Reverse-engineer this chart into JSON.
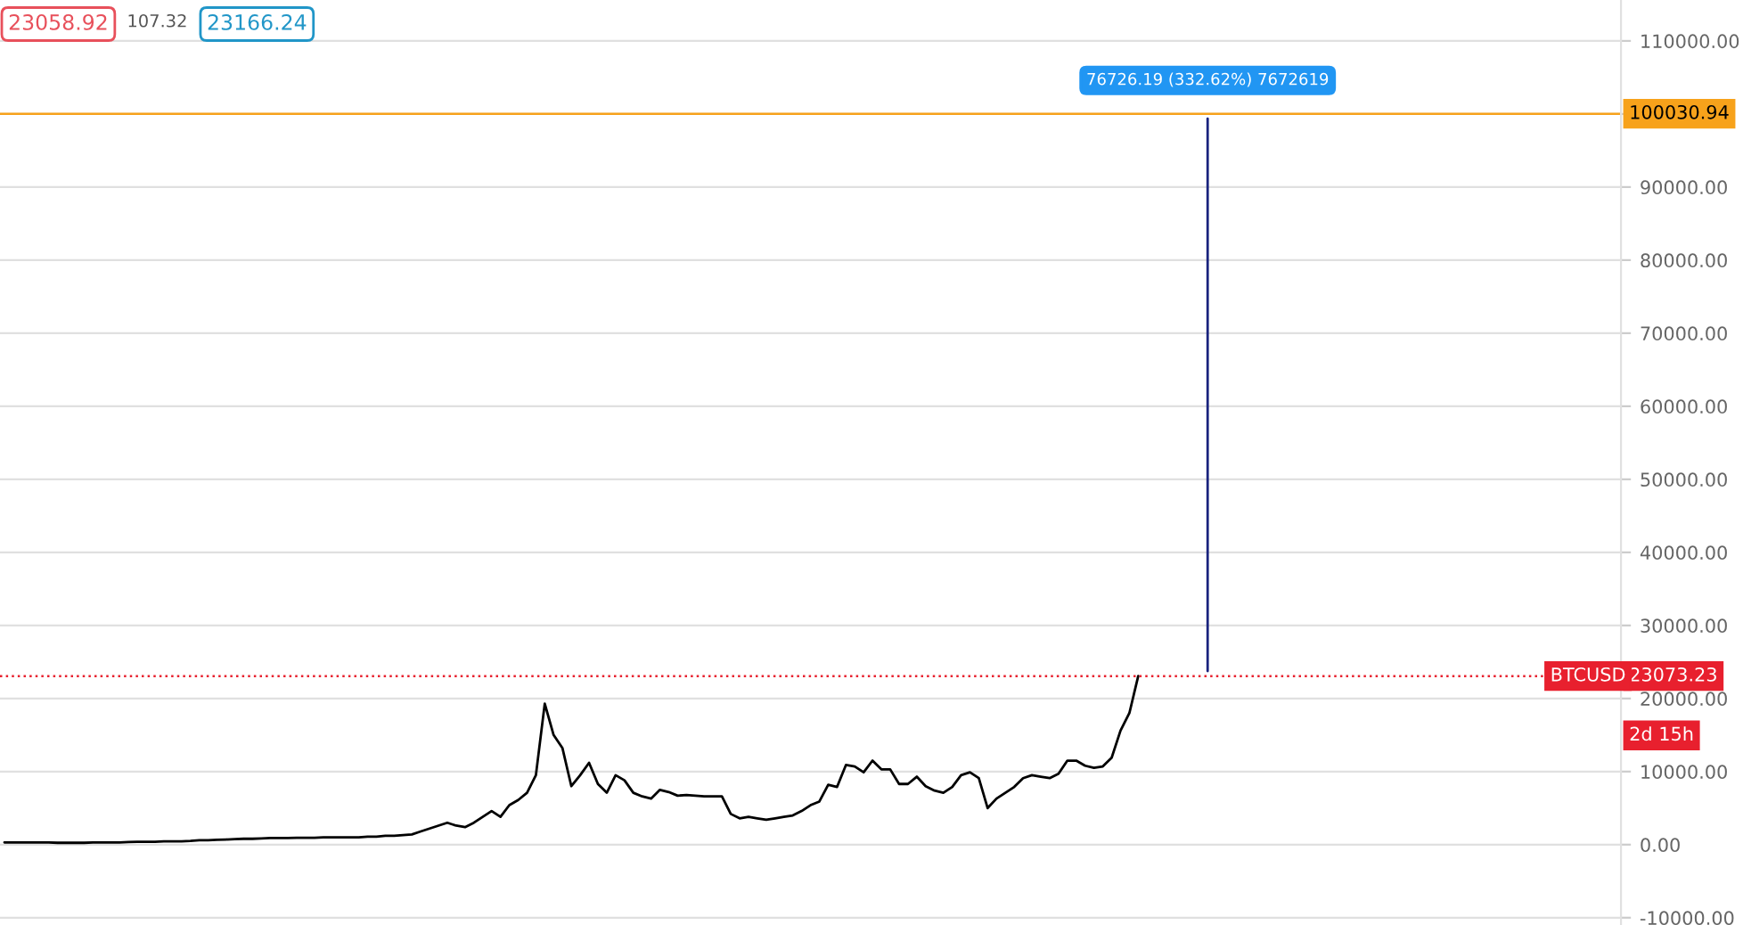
{
  "chart_data": {
    "type": "line",
    "categories": [
      null,
      null,
      null,
      null,
      null,
      null,
      null,
      null,
      null,
      null,
      null,
      null,
      null,
      null,
      null,
      null,
      null,
      null,
      null,
      null,
      null,
      null,
      null,
      null,
      null,
      null,
      null,
      null,
      null,
      null,
      null,
      null,
      null,
      null,
      null,
      null,
      null,
      null,
      null,
      null,
      null,
      null,
      null,
      null,
      null,
      null,
      null,
      null,
      null,
      null,
      null,
      null,
      null,
      null,
      null,
      null,
      null,
      null,
      null,
      null,
      null,
      null,
      null,
      null,
      null,
      null,
      null,
      null,
      null,
      null,
      null,
      null,
      null,
      null,
      null,
      null,
      null,
      null,
      null,
      null,
      null,
      null,
      null,
      null,
      null,
      null,
      null,
      null,
      null,
      null,
      null,
      null,
      null,
      null,
      null,
      null,
      null,
      null,
      null,
      null,
      null,
      null,
      null,
      null,
      null,
      null,
      null,
      null,
      null,
      null,
      null,
      null,
      null,
      null,
      null,
      null,
      null,
      null,
      null,
      null,
      null,
      null,
      null,
      null,
      null,
      null,
      null,
      null,
      null,
      null,
      null,
      null,
      null,
      null,
      null,
      null,
      null,
      null,
      null,
      null,
      null,
      null,
      null,
      null,
      null,
      null,
      null,
      null,
      null,
      null,
      null,
      null,
      null,
      null,
      null,
      null,
      null,
      null,
      null,
      null,
      null,
      null,
      null,
      null,
      null,
      null,
      null,
      null,
      null,
      null,
      null,
      null,
      null,
      null,
      null,
      null,
      null,
      null,
      null,
      null,
      null,
      null,
      null
    ],
    "series": [
      {
        "color": "#000000",
        "values": [
          300,
          300,
          300,
          300,
          300,
          300,
          250,
          250,
          250,
          250,
          300,
          300,
          300,
          300,
          350,
          400,
          400,
          400,
          450,
          450,
          450,
          500,
          600,
          600,
          650,
          700,
          750,
          800,
          800,
          850,
          900,
          900,
          900,
          950,
          950,
          950,
          1000,
          1000,
          1000,
          1000,
          1000,
          1100,
          1100,
          1200,
          1200,
          1300,
          1400,
          1800,
          2200,
          2600,
          3000,
          2600,
          2400,
          3000,
          3800,
          4600,
          3800,
          5400,
          6100,
          7100,
          9500,
          19300,
          15000,
          13200,
          8000,
          9500,
          11200,
          8300,
          7100,
          9500,
          8800,
          7100,
          6600,
          6300,
          7500,
          7200,
          6700,
          6800,
          6700,
          6600,
          6600,
          6600,
          4200,
          3600,
          3800,
          3600,
          3400,
          3600,
          3800,
          4000,
          4600,
          5400,
          5900,
          8200,
          7900,
          10900,
          10700,
          9900,
          11500,
          10300,
          10300,
          8300,
          8300,
          9300,
          8000,
          7400,
          7100,
          7900,
          9500,
          9900,
          9100,
          5000,
          6300,
          7100,
          7900,
          9100,
          9500,
          9300,
          9100,
          9700,
          11500,
          11500,
          10800,
          10500,
          10700,
          11900,
          15600,
          18000,
          23073,
          null,
          null,
          null,
          null,
          null,
          null,
          null,
          null,
          null,
          null,
          null,
          null,
          null,
          null,
          null,
          null,
          null,
          null,
          null,
          null,
          null,
          null,
          null,
          null,
          null,
          null,
          null,
          null,
          null,
          null,
          null,
          null,
          null,
          null,
          null,
          null,
          null,
          null,
          null,
          null,
          null,
          null,
          null,
          null,
          null,
          null,
          null,
          null,
          null,
          null,
          null,
          null,
          null,
          null
        ]
      }
    ],
    "ylim": [
      -11000,
      115600
    ],
    "yticks": [
      {
        "value": -10000,
        "label": "-10000.00"
      },
      {
        "value": 0,
        "label": "0.00"
      },
      {
        "value": 10000,
        "label": "10000.00"
      },
      {
        "value": 20000,
        "label": "20000.00"
      },
      {
        "value": 30000,
        "label": "30000.00"
      },
      {
        "value": 40000,
        "label": "40000.00"
      },
      {
        "value": 50000,
        "label": "50000.00"
      },
      {
        "value": 60000,
        "label": "60000.00"
      },
      {
        "value": 70000,
        "label": "70000.00"
      },
      {
        "value": 80000,
        "label": "80000.00"
      },
      {
        "value": 90000,
        "label": "90000.00"
      },
      {
        "value": 100000,
        "label": null
      },
      {
        "value": 110000,
        "label": "110000.00"
      }
    ],
    "grid": "y",
    "ref_lines": [
      {
        "axis": "y",
        "value": 100030.94,
        "label": "100030.94",
        "color": "#f7a21b",
        "line_style": "solid"
      },
      {
        "axis": "y",
        "value": 23073.23,
        "label": "23073.23",
        "color": "#e8202e",
        "line_style": "dotted"
      }
    ],
    "annotations": [
      "23058.92",
      "107.32",
      "23166.24",
      {
        "text": "76726.19 (332.62%) 7672619",
        "y": 100030.94
      },
      {
        "text": "BTCUSD",
        "y": 23073.23
      },
      "2d 15h"
    ]
  }
}
